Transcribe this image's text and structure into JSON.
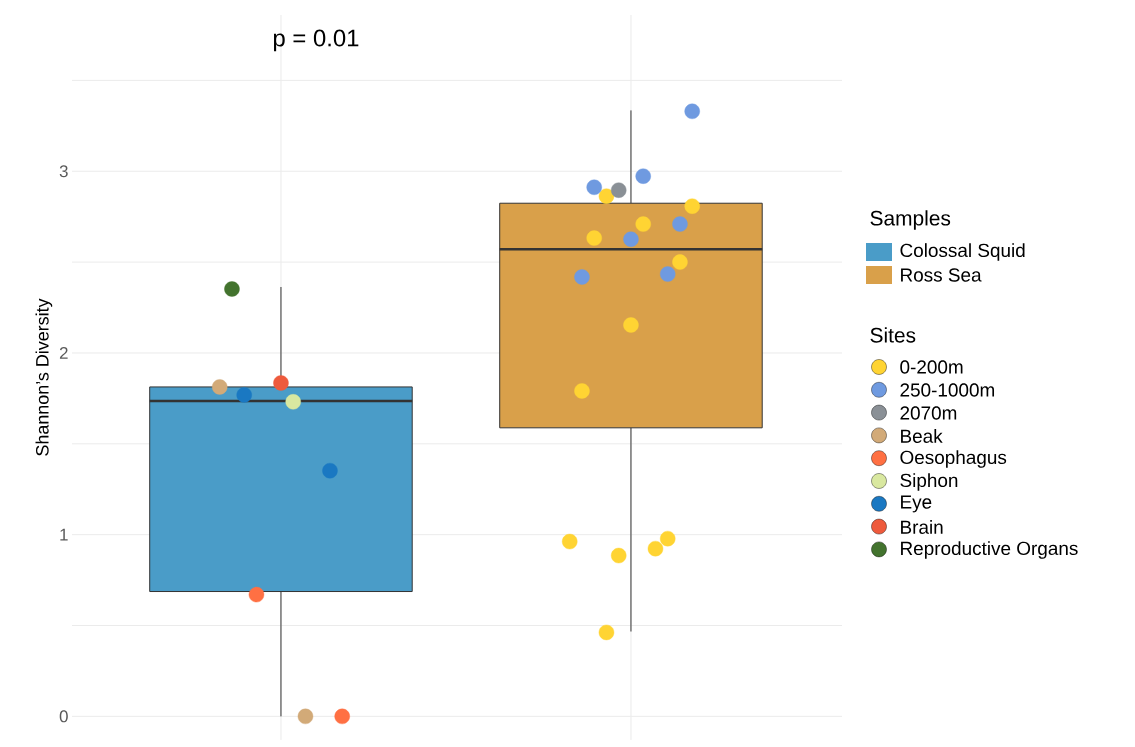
{
  "chart_data": {
    "type": "box",
    "categories": [
      null,
      null
    ],
    "ylabel": "Shannon’s Diversity",
    "legend_title": "Samples",
    "annotations": [
      "p = 0.01",
      "Sites"
    ],
    "ylim": [
      -0.13,
      3.86
    ],
    "yticks": [
      0,
      {
        "value": 0.5,
        "label": null
      },
      1,
      {
        "value": 1.5,
        "label": null
      },
      2,
      {
        "value": 2.5,
        "label": null
      },
      3,
      {
        "value": 3.5,
        "label": null
      }
    ],
    "grid": true,
    "legend": "right",
    "marker": "circle",
    "series": [
      {
        "name": "Colossal Squid",
        "color": "#4a9cc8",
        "boxes": [
          {
            "low": 0,
            "q1": 0.687,
            "median": 1.736,
            "q3": 1.813,
            "high": 2.363
          },
          null
        ]
      },
      {
        "name": "Ross Sea",
        "color": "#d9a04a",
        "boxes": [
          null,
          {
            "low": 0.467,
            "q1": 1.588,
            "median": 2.571,
            "q3": 2.824,
            "high": 3.335
          }
        ]
      },
      {
        "type": "scatter",
        "name": "0-200m",
        "color": "#ffd433",
        "values": [
          null,
          2.863
        ]
      },
      {
        "type": "scatter",
        "color": "#ffd433",
        "values": [
          null,
          2.808
        ]
      },
      {
        "type": "scatter",
        "color": "#ffd433",
        "values": [
          null,
          2.709
        ]
      },
      {
        "type": "scatter",
        "color": "#ffd433",
        "values": [
          null,
          2.632
        ]
      },
      {
        "type": "scatter",
        "color": "#ffd433",
        "values": [
          null,
          2.5
        ]
      },
      {
        "type": "scatter",
        "color": "#ffd433",
        "values": [
          null,
          2.154
        ]
      },
      {
        "type": "scatter",
        "color": "#ffd433",
        "values": [
          null,
          1.791
        ]
      },
      {
        "type": "scatter",
        "color": "#ffd433",
        "values": [
          null,
          0.978
        ]
      },
      {
        "type": "scatter",
        "color": "#ffd433",
        "values": [
          null,
          0.885
        ]
      },
      {
        "type": "scatter",
        "color": "#ffd433",
        "values": [
          null,
          0.962
        ]
      },
      {
        "type": "scatter",
        "color": "#ffd433",
        "values": [
          null,
          0.923
        ]
      },
      {
        "type": "scatter",
        "color": "#ffd433",
        "values": [
          null,
          0.462
        ]
      },
      {
        "type": "scatter",
        "name": "250-1000m",
        "color": "#6f9ae0",
        "values": [
          null,
          3.33
        ]
      },
      {
        "type": "scatter",
        "color": "#6f9ae0",
        "values": [
          null,
          2.973
        ]
      },
      {
        "type": "scatter",
        "color": "#6f9ae0",
        "values": [
          null,
          2.912
        ]
      },
      {
        "type": "scatter",
        "color": "#6f9ae0",
        "values": [
          null,
          2.709
        ]
      },
      {
        "type": "scatter",
        "color": "#6f9ae0",
        "values": [
          null,
          2.626
        ]
      },
      {
        "type": "scatter",
        "color": "#6f9ae0",
        "values": [
          null,
          2.418
        ]
      },
      {
        "type": "scatter",
        "color": "#6f9ae0",
        "values": [
          null,
          2.434
        ]
      },
      {
        "type": "scatter",
        "name": "2070m",
        "color": "#8a9096",
        "values": [
          null,
          2.896
        ]
      },
      {
        "type": "scatter",
        "name": "Beak",
        "color": "#d2aa78",
        "values": [
          1.813,
          null
        ]
      },
      {
        "type": "scatter",
        "color": "#d2aa78",
        "values": [
          0,
          null
        ]
      },
      {
        "type": "scatter",
        "name": "Oesophagus",
        "color": "#ff7043",
        "values": [
          0.67,
          null
        ]
      },
      {
        "type": "scatter",
        "color": "#ff7043",
        "values": [
          0,
          null
        ]
      },
      {
        "type": "scatter",
        "name": "Siphon",
        "color": "#d9e8a0",
        "values": [
          1.731,
          null
        ]
      },
      {
        "type": "scatter",
        "name": "Eye",
        "color": "#1a78c2",
        "values": [
          1.769,
          null
        ]
      },
      {
        "type": "scatter",
        "color": "#1a78c2",
        "values": [
          1.352,
          null
        ]
      },
      {
        "type": "scatter",
        "name": "Brain",
        "color": "#ee5a3c",
        "values": [
          1.835,
          null
        ]
      },
      {
        "type": "scatter",
        "name": "Reproductive Organs",
        "color": "#43732e",
        "values": [
          2.352,
          null
        ]
      }
    ]
  }
}
